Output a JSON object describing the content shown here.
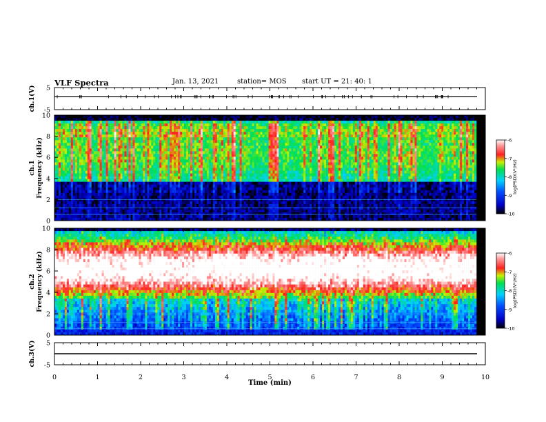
{
  "header": {
    "title": "VLF Spectra",
    "date": "Jan. 13, 2021",
    "station": "station= MOS",
    "start_ut": "start UT =   21: 40: 1"
  },
  "chart_data": [
    {
      "type": "line",
      "name": "ch1-voltage",
      "ylabel": "ch.1(V)",
      "ylim": [
        -5,
        5
      ],
      "yticks": [
        5,
        -5
      ],
      "xlim": [
        0,
        10
      ]
    },
    {
      "type": "heatmap",
      "name": "ch1-spectrogram",
      "ylabel_top": "ch.1",
      "ylabel": "Frequency (kHz)",
      "ylim": [
        0,
        10
      ],
      "yticks": [
        0,
        2,
        4,
        6,
        8,
        10
      ],
      "xlim": [
        0,
        10
      ],
      "colorbar": {
        "label": "log(PSD)(V²/Hz)",
        "range": [
          -10,
          -6
        ],
        "ticks": [
          -6,
          -7,
          -8,
          -9,
          -10
        ]
      }
    },
    {
      "type": "heatmap",
      "name": "ch2-spectrogram",
      "ylabel_top": "ch.2",
      "ylabel": "Frequency (kHz)",
      "ylim": [
        0,
        10
      ],
      "yticks": [
        0,
        2,
        4,
        6,
        8,
        10
      ],
      "xlim": [
        0,
        10
      ],
      "colorbar": {
        "label": "log(PSD)(V²/Hz)",
        "range": [
          -10,
          -6
        ],
        "ticks": [
          -6,
          -7,
          -8,
          -9,
          -10
        ]
      }
    },
    {
      "type": "line",
      "name": "ch3-voltage",
      "ylabel": "ch.3(V)",
      "ylim": [
        -5,
        5
      ],
      "yticks": [
        5,
        -5
      ],
      "xlim": [
        0,
        10
      ],
      "xlabel": "Time (min)",
      "xticks": [
        0,
        1,
        2,
        3,
        4,
        5,
        6,
        7,
        8,
        9,
        10
      ]
    }
  ]
}
